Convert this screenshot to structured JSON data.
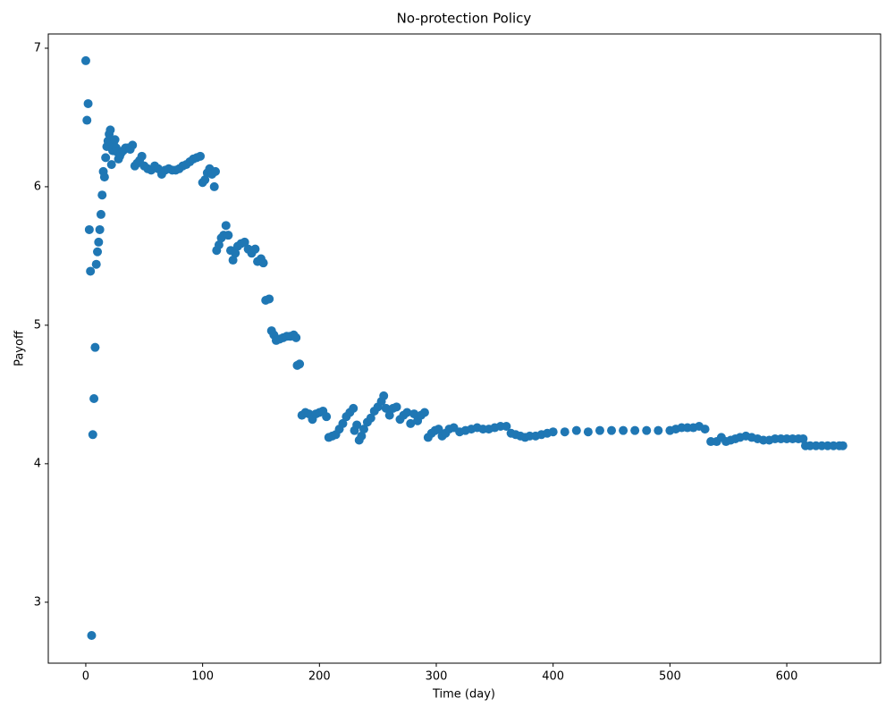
{
  "chart_data": {
    "type": "scatter",
    "title": "No-protection Policy",
    "x_label": "Time (day)",
    "y_label": "Payoff",
    "color": "#1f77b4",
    "x": [
      0,
      1,
      2,
      3,
      4,
      5,
      6,
      7,
      8,
      9,
      10,
      11,
      12,
      13,
      14,
      15,
      16,
      17,
      18,
      19,
      20,
      21,
      22,
      23,
      24,
      25,
      26,
      27,
      28,
      29,
      30,
      32,
      34,
      36,
      38,
      40,
      42,
      44,
      46,
      48,
      50,
      53,
      56,
      59,
      62,
      65,
      68,
      71,
      74,
      77,
      80,
      83,
      86,
      89,
      92,
      95,
      98,
      100,
      102,
      104,
      106,
      108,
      110,
      111,
      112,
      114,
      116,
      118,
      120,
      122,
      124,
      126,
      128,
      130,
      133,
      136,
      139,
      142,
      145,
      147,
      150,
      152,
      154,
      157,
      159,
      161,
      163,
      166,
      169,
      172,
      175,
      178,
      180,
      181,
      183,
      185,
      188,
      191,
      194,
      197,
      200,
      203,
      206,
      208,
      211,
      214,
      217,
      220,
      223,
      226,
      229,
      230,
      232,
      234,
      236,
      238,
      241,
      244,
      247,
      250,
      253,
      255,
      257,
      260,
      263,
      266,
      269,
      272,
      275,
      278,
      281,
      284,
      287,
      290,
      293,
      296,
      299,
      302,
      305,
      308,
      311,
      315,
      320,
      325,
      330,
      335,
      340,
      345,
      350,
      355,
      360,
      364,
      368,
      372,
      376,
      380,
      385,
      390,
      395,
      400,
      410,
      420,
      430,
      440,
      450,
      460,
      470,
      480,
      490,
      500,
      505,
      510,
      515,
      520,
      525,
      530,
      535,
      540,
      544,
      548,
      552,
      556,
      560,
      565,
      570,
      575,
      580,
      585,
      590,
      595,
      600,
      605,
      610,
      614,
      616,
      620,
      625,
      630,
      635,
      640,
      645,
      648
    ],
    "y": [
      6.91,
      6.48,
      6.6,
      5.69,
      5.39,
      2.76,
      4.21,
      4.47,
      4.84,
      5.44,
      5.53,
      5.6,
      5.69,
      5.8,
      5.94,
      6.11,
      6.07,
      6.21,
      6.29,
      6.33,
      6.38,
      6.41,
      6.16,
      6.26,
      6.3,
      6.34,
      6.28,
      6.25,
      6.2,
      6.22,
      6.24,
      6.26,
      6.28,
      6.28,
      6.27,
      6.3,
      6.15,
      6.17,
      6.19,
      6.22,
      6.15,
      6.13,
      6.12,
      6.15,
      6.13,
      6.09,
      6.12,
      6.13,
      6.12,
      6.12,
      6.13,
      6.15,
      6.16,
      6.18,
      6.2,
      6.21,
      6.22,
      6.03,
      6.05,
      6.1,
      6.13,
      6.09,
      6.0,
      6.11,
      5.54,
      5.58,
      5.63,
      5.65,
      5.72,
      5.65,
      5.54,
      5.47,
      5.52,
      5.57,
      5.59,
      5.6,
      5.55,
      5.52,
      5.55,
      5.46,
      5.48,
      5.45,
      5.18,
      5.19,
      4.96,
      4.93,
      4.89,
      4.9,
      4.91,
      4.92,
      4.92,
      4.93,
      4.91,
      4.71,
      4.72,
      4.35,
      4.37,
      4.36,
      4.32,
      4.36,
      4.37,
      4.38,
      4.34,
      4.19,
      4.2,
      4.21,
      4.25,
      4.29,
      4.34,
      4.37,
      4.4,
      4.24,
      4.28,
      4.17,
      4.2,
      4.25,
      4.3,
      4.33,
      4.38,
      4.41,
      4.45,
      4.49,
      4.4,
      4.35,
      4.4,
      4.41,
      4.32,
      4.35,
      4.37,
      4.29,
      4.36,
      4.31,
      4.35,
      4.37,
      4.19,
      4.22,
      4.24,
      4.25,
      4.2,
      4.22,
      4.25,
      4.26,
      4.23,
      4.24,
      4.25,
      4.26,
      4.25,
      4.25,
      4.26,
      4.27,
      4.27,
      4.22,
      4.21,
      4.2,
      4.19,
      4.2,
      4.2,
      4.21,
      4.22,
      4.23,
      4.23,
      4.24,
      4.23,
      4.24,
      4.24,
      4.24,
      4.24,
      4.24,
      4.24,
      4.24,
      4.25,
      4.26,
      4.26,
      4.26,
      4.27,
      4.25,
      4.16,
      4.16,
      4.19,
      4.16,
      4.17,
      4.18,
      4.19,
      4.2,
      4.19,
      4.18,
      4.17,
      4.17,
      4.18,
      4.18,
      4.18,
      4.18,
      4.18,
      4.18,
      4.13,
      4.13,
      4.13,
      4.13,
      4.13,
      4.13,
      4.13,
      4.13
    ],
    "xlim": [
      -32.1,
      680.3
    ],
    "ylim": [
      2.56,
      7.103
    ],
    "xticks": [
      0,
      100,
      200,
      300,
      400,
      500,
      600
    ],
    "yticks": [
      3,
      4,
      5,
      6,
      7
    ]
  }
}
